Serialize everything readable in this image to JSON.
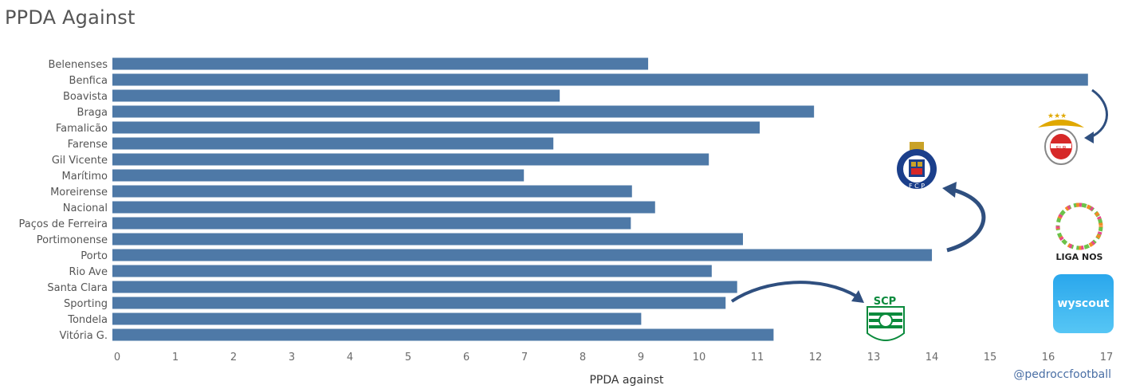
{
  "title": "PPDA Against",
  "credit": "@pedroccfootball",
  "colors": {
    "bar": "#4e79a7",
    "arrow": "#2f4f7f"
  },
  "logos": {
    "liga": {
      "text": "LIGA NOS"
    },
    "wyscout": {
      "text": "wyscout"
    },
    "sporting": {
      "text": "SCP"
    }
  },
  "chart_data": {
    "type": "bar",
    "orientation": "horizontal",
    "categories": [
      "Belenenses",
      "Benfica",
      "Boavista",
      "Braga",
      "Famalicão",
      "Farense",
      "Gil Vicente",
      "Marítimo",
      "Moreirense",
      "Nacional",
      "Paços de Ferreira",
      "Portimonense",
      "Porto",
      "Rio Ave",
      "Santa Clara",
      "Sporting",
      "Tondela",
      "Vitória G."
    ],
    "values": [
      9.27,
      16.88,
      7.74,
      12.14,
      11.2,
      7.63,
      10.32,
      7.12,
      8.99,
      9.39,
      8.97,
      10.91,
      14.18,
      10.37,
      10.81,
      10.61,
      9.15,
      11.44
    ],
    "xlabel": "PPDA against",
    "ylabel": "",
    "xlim": [
      0,
      17
    ],
    "xticks": [
      "0",
      "1",
      "2",
      "3",
      "4",
      "5",
      "6",
      "7",
      "8",
      "9",
      "10",
      "11",
      "12",
      "13",
      "14",
      "15",
      "16",
      "17"
    ],
    "grid": false,
    "legend": "none"
  }
}
